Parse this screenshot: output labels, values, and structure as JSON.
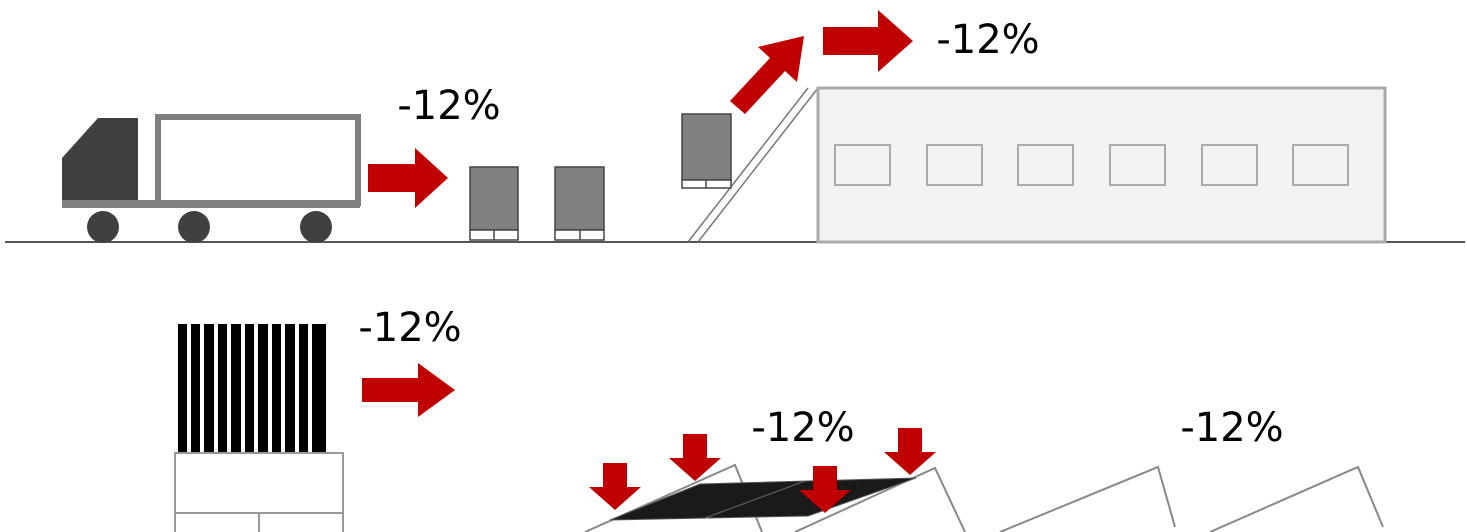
{
  "labels": [
    "-12%",
    "-12%",
    "-12%",
    "-12%",
    "-12%"
  ]
}
